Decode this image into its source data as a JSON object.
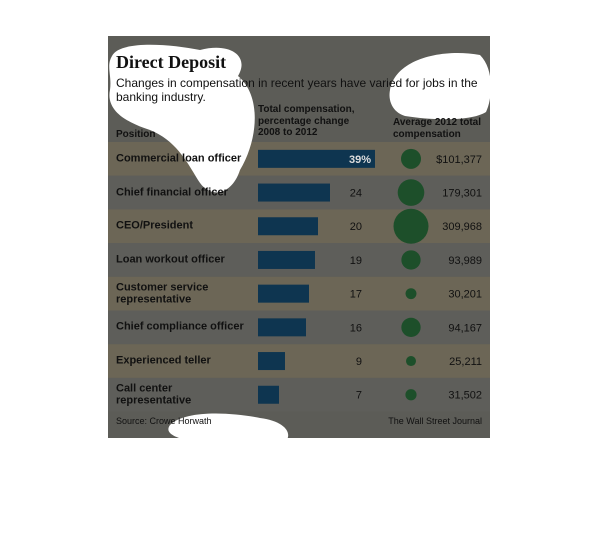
{
  "chart_data": {
    "type": "bar",
    "title": "Direct Deposit",
    "subtitle": "Changes in compensation in recent years have varied for jobs in the banking industry.",
    "category_label": "Position",
    "categories": [
      "Commercial loan officer",
      "Chief financial officer",
      "CEO/President",
      "Loan workout officer",
      "Customer service representative",
      "Chief compliance officer",
      "Experienced teller",
      "Call center representative"
    ],
    "series": [
      {
        "name": "Total compensation, percentage change 2008 to 2012",
        "color": "#0e3550",
        "values": [
          39,
          24,
          20,
          19,
          17,
          16,
          9,
          7
        ],
        "value_labels": [
          "39%",
          "24",
          "20",
          "19",
          "17",
          "16",
          "9",
          "7"
        ]
      },
      {
        "name": "Average 2012 total compensation",
        "color": "#1d4f2a",
        "values": [
          101377,
          179301,
          309968,
          93989,
          30201,
          94167,
          25211,
          31502
        ],
        "value_labels": [
          "$101,377",
          "179,301",
          "309,968",
          "93,989",
          "30,201",
          "94,167",
          "25,211",
          "31,502"
        ]
      }
    ],
    "source": "Source: Crowe Horwath",
    "credit": "The Wall Street Journal"
  }
}
